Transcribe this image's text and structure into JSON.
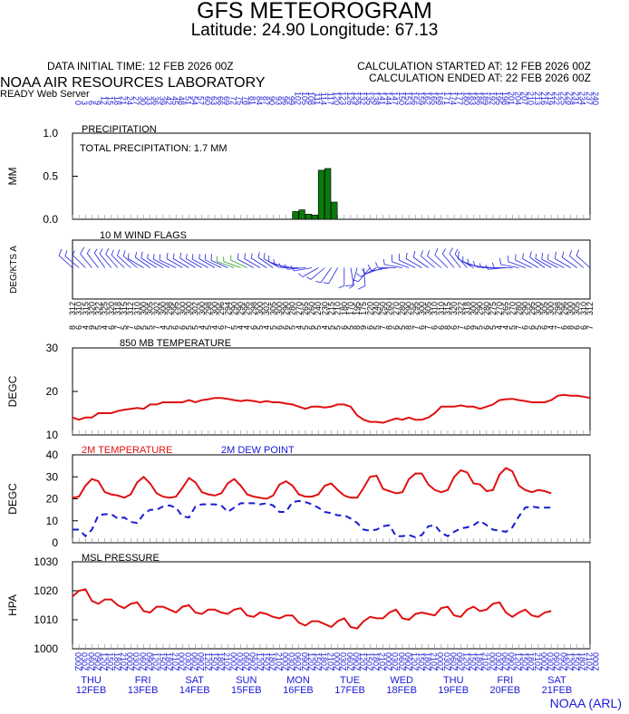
{
  "header": {
    "title": "GFS METEOROGRAM",
    "subtitle": "Latitude: 24.90 Longitude:  67.13",
    "initial_time": "DATA INITIAL TIME: 12 FEB 2026 00Z",
    "calc_started": "CALCULATION STARTED AT: 12 FEB 2026 00Z",
    "calc_ended": "CALCULATION ENDED AT: 22 FEB 2026 00Z",
    "org": "NOAA AIR RESOURCES LABORATORY",
    "server": "READY Web Server",
    "footer": "NOAA (ARL)"
  },
  "day_labels": [
    {
      "dow": "THU",
      "date": "12FEB"
    },
    {
      "dow": "FRI",
      "date": "13FEB"
    },
    {
      "dow": "SAT",
      "date": "14FEB"
    },
    {
      "dow": "SUN",
      "date": "15FEB"
    },
    {
      "dow": "MON",
      "date": "16FEB"
    },
    {
      "dow": "TUE",
      "date": "17FEB"
    },
    {
      "dow": "WED",
      "date": "18FEB"
    },
    {
      "dow": "THU",
      "date": "19FEB"
    },
    {
      "dow": "FRI",
      "date": "20FEB"
    },
    {
      "dow": "SAT",
      "date": "21FEB"
    }
  ],
  "chart_data": [
    {
      "type": "bar",
      "title": "PRECIPITATION",
      "annotation": "TOTAL PRECIPITATION:   1.7 MM",
      "ylabel": "MM",
      "ylim": [
        0,
        1.0
      ],
      "yticks": [
        "0.0",
        "0.5",
        "1.0"
      ],
      "x_hours": [
        102,
        105,
        108,
        111,
        114,
        117,
        120,
        123,
        126
      ],
      "values": [
        0.09,
        0.11,
        0.06,
        0.05,
        0.57,
        0.59,
        0.2,
        0.0,
        0.0
      ],
      "color": "#0a7a0a"
    },
    {
      "type": "wind_flags",
      "title": "10 M  WIND FLAGS",
      "ylabel": "DEG/KTS  A",
      "directions_deg": [
        312,
        310,
        315,
        320,
        322,
        325,
        320,
        318,
        315,
        312,
        310,
        300,
        305,
        302,
        300,
        298,
        295,
        300,
        300,
        302,
        300,
        298,
        300,
        296,
        294,
        290,
        290,
        295,
        298,
        300,
        302,
        305,
        300,
        290,
        280,
        270,
        265,
        260,
        240,
        230,
        215,
        210,
        180,
        170,
        195,
        175,
        220,
        240,
        250,
        260,
        270,
        280,
        290,
        295,
        300,
        305,
        310,
        310,
        315,
        320,
        322,
        318,
        300,
        290,
        280,
        275,
        270,
        265,
        270,
        280,
        290,
        295,
        300,
        305,
        300,
        298,
        296,
        300,
        305,
        310,
        312
      ],
      "speeds_kts": [
        8,
        6,
        4,
        9,
        5,
        4,
        6,
        7,
        5,
        7,
        6,
        5,
        5,
        7,
        4,
        5,
        6,
        6,
        5,
        5,
        4,
        5,
        4,
        6,
        7,
        5,
        4,
        4,
        6,
        5,
        4,
        5,
        6,
        6,
        5,
        4,
        5,
        6,
        5,
        4,
        5,
        5,
        6,
        5,
        8,
        9,
        6,
        5,
        7,
        8,
        6,
        5,
        8,
        7,
        6,
        7,
        6,
        6,
        8,
        6,
        7,
        6,
        9,
        5,
        6,
        5,
        4,
        4,
        5,
        7,
        6,
        6,
        5,
        6,
        4,
        7,
        6,
        8,
        6,
        6,
        7
      ],
      "color": "#2424e0",
      "highlight_color": "#2a9a2a"
    },
    {
      "type": "line",
      "title": "850 MB  TEMPERATURE",
      "ylabel": "DEGC",
      "ylim": [
        10,
        30
      ],
      "yticks": [
        "10",
        "20",
        "30"
      ],
      "x_step_hours": 3,
      "series": [
        {
          "name": "",
          "color": "#e01010",
          "values": [
            14,
            13.5,
            14,
            14,
            15,
            15,
            15,
            15.5,
            15.8,
            16,
            16.2,
            16,
            17,
            17,
            17.5,
            17.5,
            17.5,
            17.5,
            18,
            17.5,
            18,
            18.2,
            18.5,
            18.5,
            18.3,
            18,
            17.8,
            18,
            17.8,
            17.5,
            17.8,
            17.5,
            17.5,
            17.2,
            17,
            16.5,
            16,
            16.5,
            16.5,
            16.3,
            16.5,
            17,
            17,
            16.5,
            14.5,
            13.5,
            13,
            13,
            12.8,
            13.3,
            13.8,
            13.5,
            14,
            13.5,
            13.5,
            14,
            15,
            16.5,
            16.5,
            16.5,
            16.8,
            16.5,
            16.5,
            16,
            16.5,
            17,
            18,
            18.2,
            18.3,
            18,
            17.8,
            17.5,
            17.5,
            17.5,
            18,
            19,
            19.2,
            19,
            19,
            18.8,
            18.5
          ]
        }
      ]
    },
    {
      "type": "line",
      "title": "",
      "ylabel": "DEGC",
      "ylim": [
        0,
        40
      ],
      "yticks": [
        "0",
        "10",
        "20",
        "30",
        "40"
      ],
      "x_step_hours": 3,
      "series": [
        {
          "name": "2M TEMPERATURE",
          "color": "#e01010",
          "dash": false,
          "values": [
            20.5,
            21,
            26,
            29,
            28,
            23,
            22,
            21.5,
            20.5,
            22,
            27.5,
            30,
            27,
            22.5,
            21,
            20.5,
            21,
            25,
            29.5,
            27.5,
            23,
            22,
            21.5,
            22.5,
            27,
            29,
            26,
            22,
            21,
            20.5,
            20,
            21.5,
            26.5,
            28,
            26,
            22,
            21,
            21,
            22,
            26,
            27,
            24,
            21.5,
            20.5,
            20.5,
            25,
            30,
            30.5,
            24.5,
            23.5,
            22.5,
            23,
            29,
            31.5,
            31.5,
            26.5,
            24,
            23,
            24,
            30,
            33,
            32,
            27,
            26.5,
            23.5,
            24,
            31,
            34,
            32.5,
            26,
            24,
            23,
            24,
            23.5,
            22.5
          ]
        },
        {
          "name": "2M  DEW POINT",
          "color": "#1a1ad6",
          "dash": true,
          "values": [
            6,
            6,
            3,
            6,
            12.5,
            13,
            13,
            11,
            11.5,
            9.5,
            9,
            13,
            15,
            15,
            16.5,
            17,
            16,
            12,
            11.5,
            16.5,
            17.5,
            17.5,
            17.5,
            17,
            14,
            16,
            18,
            18,
            18,
            17.5,
            18,
            17,
            14,
            14,
            18.5,
            19,
            18.5,
            17.5,
            16,
            14,
            13.5,
            12.5,
            12.5,
            11,
            9,
            6,
            5.5,
            6,
            7.5,
            8,
            3,
            3,
            3.5,
            2.5,
            3.5,
            7.5,
            8,
            4.5,
            3,
            5,
            6.5,
            7,
            8,
            10,
            8,
            6,
            5.5,
            5,
            7,
            12,
            16,
            16.5,
            16,
            16,
            16
          ]
        }
      ]
    },
    {
      "type": "line",
      "title": "MSL PRESSURE",
      "ylabel": "HPA",
      "ylim": [
        1000,
        1030
      ],
      "yticks": [
        "1000",
        "1010",
        "1020",
        "1030"
      ],
      "x_step_hours": 3,
      "series": [
        {
          "name": "",
          "color": "#e01010",
          "values": [
            1018,
            1020,
            1020.5,
            1016.5,
            1015.5,
            1017,
            1017,
            1015,
            1014,
            1015.5,
            1016,
            1013,
            1012.5,
            1014.5,
            1014.5,
            1013.5,
            1012.5,
            1014.5,
            1015,
            1012.5,
            1012,
            1013.5,
            1013.5,
            1012.5,
            1012,
            1013.5,
            1014,
            1011.5,
            1011,
            1012.5,
            1012,
            1011,
            1010.5,
            1011.5,
            1011.5,
            1009,
            1008,
            1009.5,
            1009.5,
            1008.5,
            1007.5,
            1009.5,
            1010.5,
            1007.5,
            1007,
            1009.5,
            1011,
            1010.5,
            1010.5,
            1012.5,
            1013.5,
            1010.5,
            1010,
            1012,
            1012.5,
            1012,
            1011.5,
            1014,
            1014.5,
            1011.5,
            1011,
            1013.5,
            1014.5,
            1013,
            1013.5,
            1015.5,
            1016,
            1012.5,
            1011,
            1012.5,
            1013.5,
            1011.5,
            1011,
            1012.5,
            1013
          ]
        }
      ]
    }
  ]
}
